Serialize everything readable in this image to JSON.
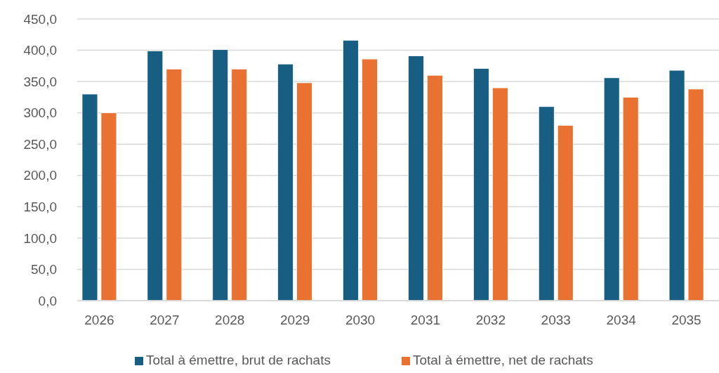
{
  "chart_data": {
    "type": "bar",
    "categories": [
      "2026",
      "2027",
      "2028",
      "2029",
      "2030",
      "2031",
      "2032",
      "2033",
      "2034",
      "2035"
    ],
    "series": [
      {
        "name": "Total à émettre, brut de rachats",
        "color": "#175e82",
        "values": [
          330,
          399,
          401,
          378,
          416,
          391,
          371,
          310,
          356,
          368
        ]
      },
      {
        "name": "Total à émettre, net de rachats",
        "color": "#e97132",
        "values": [
          300,
          370,
          370,
          348,
          386,
          360,
          340,
          280,
          325,
          338
        ]
      }
    ],
    "ylim": [
      0,
      450
    ],
    "yticks": [
      {
        "value": 0,
        "label": "0,0"
      },
      {
        "value": 50,
        "label": "50,0"
      },
      {
        "value": 100,
        "label": "100,0"
      },
      {
        "value": 150,
        "label": "150,0"
      },
      {
        "value": 200,
        "label": "200,0"
      },
      {
        "value": 250,
        "label": "250,0"
      },
      {
        "value": 300,
        "label": "300,0"
      },
      {
        "value": 350,
        "label": "350,0"
      },
      {
        "value": 400,
        "label": "400,0"
      },
      {
        "value": 450,
        "label": "450,0"
      }
    ],
    "grid": "y",
    "legend": "bottom"
  }
}
